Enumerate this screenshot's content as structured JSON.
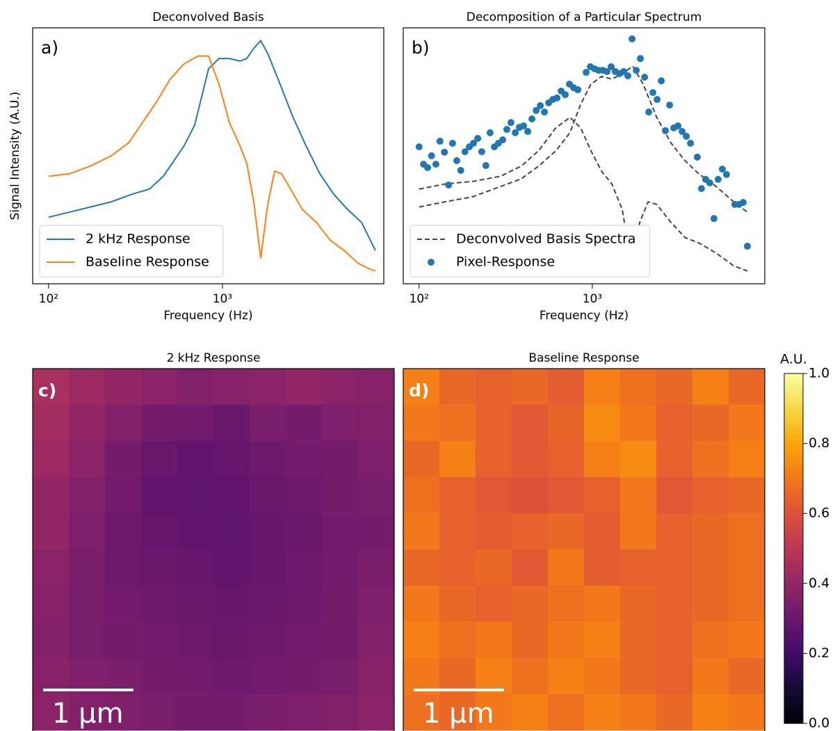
{
  "chart_data": [
    {
      "type": "line",
      "title": "Deconvolved Basis",
      "panel_label": "a)",
      "xlabel": "Frequency (Hz)",
      "ylabel": "Signal Intensity (A.U.)",
      "xlog": true,
      "xlim": [
        81,
        8470
      ],
      "ylim": [
        0,
        1
      ],
      "xticks": [
        {
          "value": 100,
          "label": "10²"
        },
        {
          "value": 1000,
          "label": "10³"
        }
      ],
      "legend": "lower left",
      "series": [
        {
          "name": "2 kHz Response",
          "color": "#1f77b4",
          "style": "solid",
          "x": [
            100,
            132,
            174,
            229,
            302,
            380,
            457,
            525,
            603,
            692,
            759,
            832,
            955,
            1096,
            1259,
            1380,
            1514,
            1660,
            1820,
            2089,
            2512,
            3020,
            3631,
            4365,
            5248,
            6310,
            7586
          ],
          "values": [
            0.26,
            0.28,
            0.3,
            0.32,
            0.35,
            0.37,
            0.42,
            0.48,
            0.54,
            0.62,
            0.73,
            0.84,
            0.88,
            0.88,
            0.87,
            0.88,
            0.92,
            0.95,
            0.9,
            0.8,
            0.66,
            0.54,
            0.43,
            0.35,
            0.29,
            0.24,
            0.13
          ]
        },
        {
          "name": "Baseline Response",
          "color": "#ff7f0e",
          "style": "solid",
          "x": [
            100,
            132,
            174,
            229,
            288,
            347,
            417,
            501,
            603,
            724,
            832,
            955,
            1096,
            1259,
            1380,
            1514,
            1660,
            1820,
            1995,
            2188,
            2512,
            2884,
            3467,
            4169,
            5012,
            6026,
            6918,
            7586
          ],
          "values": [
            0.42,
            0.43,
            0.46,
            0.5,
            0.55,
            0.63,
            0.71,
            0.8,
            0.86,
            0.89,
            0.89,
            0.78,
            0.63,
            0.54,
            0.47,
            0.32,
            0.1,
            0.31,
            0.44,
            0.43,
            0.36,
            0.29,
            0.24,
            0.17,
            0.13,
            0.08,
            0.06,
            0.05
          ]
        }
      ]
    },
    {
      "type": "mixed",
      "title": "Decomposition of a Particular Spectrum",
      "panel_label": "b)",
      "xlabel": "Frequency (Hz)",
      "xlog": true,
      "xlim": [
        81,
        9900
      ],
      "ylim": [
        0,
        1
      ],
      "xticks": [
        {
          "value": 100,
          "label": "10²"
        },
        {
          "value": 1000,
          "label": "10³"
        }
      ],
      "legend": "lower left",
      "series": [
        {
          "name": "Deconvolved Basis Spectra",
          "type": "line",
          "color": "#444444",
          "style": "dashed",
          "x": [
            100,
            141,
            204,
            295,
            389,
            490,
            617,
            743,
            855,
            982,
            1130,
            1297,
            1490,
            1712,
            1966,
            2354,
            2844,
            3438,
            4112,
            5189,
            6552,
            7860
          ],
          "values": [
            0.3,
            0.32,
            0.34,
            0.38,
            0.41,
            0.46,
            0.52,
            0.59,
            0.7,
            0.78,
            0.81,
            0.8,
            0.82,
            0.85,
            0.78,
            0.65,
            0.55,
            0.48,
            0.43,
            0.38,
            0.32,
            0.28
          ]
        },
        {
          "type": "line",
          "color": "#444444",
          "style": "dashed",
          "x": [
            100,
            141,
            204,
            295,
            389,
            490,
            617,
            743,
            855,
            982,
            1130,
            1297,
            1490,
            1624,
            1712,
            1878,
            2099,
            2354,
            2844,
            3438,
            4112,
            5189,
            6552,
            7860
          ],
          "values": [
            0.37,
            0.39,
            0.4,
            0.42,
            0.46,
            0.52,
            0.61,
            0.65,
            0.61,
            0.52,
            0.44,
            0.39,
            0.29,
            0.13,
            0.08,
            0.24,
            0.32,
            0.31,
            0.24,
            0.18,
            0.16,
            0.12,
            0.07,
            0.05
          ]
        },
        {
          "name": "Pixel-Response",
          "type": "scatter",
          "color": "#1f77b4",
          "x": [
            100,
            106,
            112,
            118,
            125,
            132,
            140,
            148,
            156,
            165,
            174,
            184,
            195,
            206,
            218,
            230,
            243,
            257,
            272,
            287,
            304,
            321,
            339,
            359,
            379,
            401,
            424,
            448,
            474,
            501,
            529,
            560,
            591,
            625,
            661,
            698,
            738,
            780,
            825,
            921,
            974,
            1029,
            1088,
            1150,
            1216,
            1285,
            1358,
            1436,
            1518,
            1604,
            1696,
            1793,
            1895,
            2003,
            2117,
            2238,
            2366,
            2501,
            2643,
            2794,
            2954,
            3122,
            3300,
            3489,
            3689,
            4036,
            4266,
            4510,
            4767,
            5039,
            5327,
            5631,
            5952,
            6650,
            7030,
            7431,
            7856
          ],
          "values": [
            0.535,
            0.467,
            0.454,
            0.5,
            0.467,
            0.557,
            0.514,
            0.386,
            0.549,
            0.481,
            0.443,
            0.516,
            0.535,
            0.549,
            0.568,
            0.516,
            0.462,
            0.59,
            0.535,
            0.549,
            0.5625,
            0.603,
            0.63,
            0.59,
            0.611,
            0.617,
            0.595,
            0.644,
            0.677,
            0.696,
            0.671,
            0.707,
            0.72,
            0.726,
            0.753,
            0.739,
            0.78,
            0.766,
            0.758,
            0.826,
            0.848,
            0.84,
            0.834,
            0.834,
            0.829,
            0.848,
            0.829,
            0.821,
            0.829,
            0.8125,
            0.957,
            0.834,
            0.88,
            0.807,
            0.671,
            0.747,
            0.72,
            0.793,
            0.598,
            0.698,
            0.609,
            0.617,
            0.595,
            0.576,
            0.549,
            0.495,
            0.372,
            0.408,
            0.394,
            0.255,
            0.408,
            0.448,
            0.427,
            0.31,
            0.31,
            0.318,
            0.147
          ]
        }
      ]
    },
    {
      "type": "heatmap",
      "title": "2 kHz Response",
      "panel_label": "c)",
      "scalebar": "1 μm",
      "colormap": "inferno",
      "zlim": [
        0,
        1
      ],
      "z": [
        [
          0.45,
          0.42,
          0.4,
          0.38,
          0.36,
          0.37,
          0.38,
          0.4,
          0.38,
          0.37
        ],
        [
          0.44,
          0.4,
          0.36,
          0.33,
          0.32,
          0.3,
          0.34,
          0.33,
          0.35,
          0.36
        ],
        [
          0.42,
          0.38,
          0.33,
          0.3,
          0.28,
          0.29,
          0.31,
          0.32,
          0.33,
          0.35
        ],
        [
          0.4,
          0.36,
          0.32,
          0.28,
          0.27,
          0.28,
          0.3,
          0.31,
          0.33,
          0.34
        ],
        [
          0.4,
          0.35,
          0.31,
          0.29,
          0.28,
          0.27,
          0.29,
          0.3,
          0.32,
          0.33
        ],
        [
          0.38,
          0.34,
          0.31,
          0.3,
          0.29,
          0.28,
          0.29,
          0.31,
          0.32,
          0.34
        ],
        [
          0.37,
          0.34,
          0.32,
          0.31,
          0.3,
          0.29,
          0.3,
          0.31,
          0.33,
          0.35
        ],
        [
          0.36,
          0.34,
          0.33,
          0.32,
          0.31,
          0.3,
          0.31,
          0.32,
          0.33,
          0.36
        ],
        [
          0.37,
          0.35,
          0.34,
          0.33,
          0.32,
          0.31,
          0.32,
          0.33,
          0.34,
          0.37
        ],
        [
          0.38,
          0.36,
          0.35,
          0.34,
          0.33,
          0.33,
          0.34,
          0.35,
          0.36,
          0.38
        ]
      ]
    },
    {
      "type": "heatmap",
      "title": "Baseline Response",
      "panel_label": "d)",
      "scalebar": "1 μm",
      "colormap": "inferno",
      "zlim": [
        0,
        1
      ],
      "z": [
        [
          0.72,
          0.66,
          0.64,
          0.66,
          0.63,
          0.72,
          0.68,
          0.66,
          0.72,
          0.66
        ],
        [
          0.7,
          0.68,
          0.64,
          0.62,
          0.65,
          0.74,
          0.7,
          0.64,
          0.66,
          0.7
        ],
        [
          0.66,
          0.72,
          0.64,
          0.62,
          0.64,
          0.72,
          0.74,
          0.64,
          0.68,
          0.72
        ],
        [
          0.68,
          0.64,
          0.62,
          0.6,
          0.62,
          0.64,
          0.7,
          0.62,
          0.64,
          0.66
        ],
        [
          0.7,
          0.64,
          0.63,
          0.64,
          0.66,
          0.63,
          0.7,
          0.64,
          0.66,
          0.68
        ],
        [
          0.66,
          0.64,
          0.66,
          0.62,
          0.7,
          0.63,
          0.64,
          0.64,
          0.66,
          0.68
        ],
        [
          0.7,
          0.66,
          0.64,
          0.66,
          0.68,
          0.7,
          0.66,
          0.64,
          0.66,
          0.68
        ],
        [
          0.72,
          0.68,
          0.7,
          0.66,
          0.7,
          0.72,
          0.66,
          0.64,
          0.68,
          0.7
        ],
        [
          0.7,
          0.66,
          0.72,
          0.68,
          0.72,
          0.7,
          0.66,
          0.64,
          0.7,
          0.66
        ],
        [
          0.68,
          0.66,
          0.7,
          0.72,
          0.68,
          0.72,
          0.7,
          0.66,
          0.72,
          0.7
        ]
      ],
      "colorbar": {
        "label": "A.U.",
        "lim": [
          0,
          1
        ],
        "ticks": [
          {
            "value": 0,
            "label": "0.0"
          },
          0.2,
          0.4,
          0.6,
          0.8,
          {
            "value": 1,
            "label": "1.0"
          }
        ]
      }
    }
  ]
}
